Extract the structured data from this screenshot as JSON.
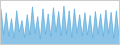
{
  "chart_data": {
    "type": "area",
    "values": [
      85,
      20,
      75,
      15,
      60,
      10,
      80,
      25,
      55,
      12,
      70,
      18,
      90,
      22,
      65,
      8,
      85,
      20,
      72,
      14,
      88,
      25,
      78,
      16,
      92,
      20,
      80,
      12,
      85,
      22,
      70,
      15,
      75,
      18,
      68,
      10,
      78,
      20,
      72,
      14,
      82,
      22,
      76,
      10,
      80,
      16
    ],
    "color": "#5aabdc",
    "ylim": [
      -5,
      105
    ],
    "grid": false,
    "tick_labels": false
  }
}
